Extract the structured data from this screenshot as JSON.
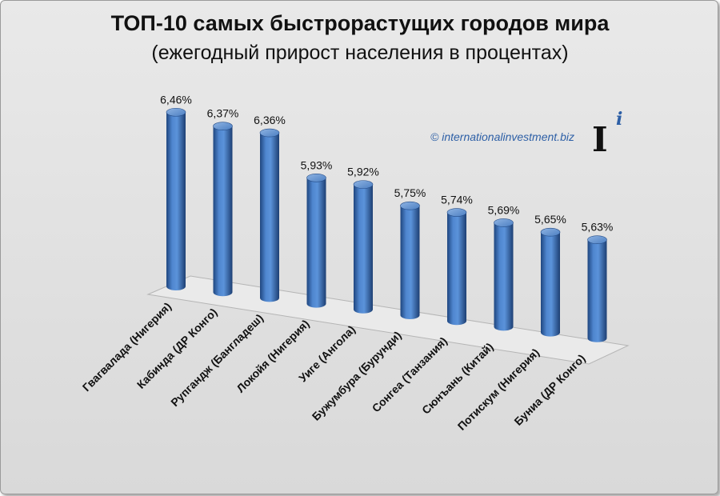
{
  "title": "ТОП-10 самых быстрорастущих городов мира",
  "subtitle": "(ежегодный прирост населения в процентах)",
  "watermark": "© internationalinvestment.biz",
  "chart_data": {
    "type": "bar",
    "title": "ТОП-10 самых быстрорастущих городов мира",
    "subtitle": "(ежегодный прирост населения в процентах)",
    "categories": [
      "Гвагвалада (Нигерия)",
      "Кабинда (ДР Конго)",
      "Рупгандж (Бангладеш)",
      "Локойя (Нигерия)",
      "Уиге (Ангола)",
      "Бужумбура (Бурунди)",
      "Сонгеа (Танзания)",
      "Сюнъань (Китай)",
      "Потискум (Нигерия)",
      "Буниа (ДР Конго)"
    ],
    "values": [
      6.46,
      6.37,
      6.36,
      5.93,
      5.92,
      5.75,
      5.74,
      5.69,
      5.65,
      5.63
    ],
    "labels": [
      "6,46%",
      "6,37%",
      "6,36%",
      "5,93%",
      "5,92%",
      "5,75%",
      "5,74%",
      "5,69%",
      "5,65%",
      "5,63%"
    ],
    "xlabel": "",
    "ylabel": "",
    "grid": false,
    "legend": "none",
    "style": "3d-cylinder",
    "colors": {
      "bar": "#3a6fb8",
      "bar_dark": "#234a85",
      "bar_light": "#7ea7dc",
      "background": "#dcdcdc"
    }
  }
}
